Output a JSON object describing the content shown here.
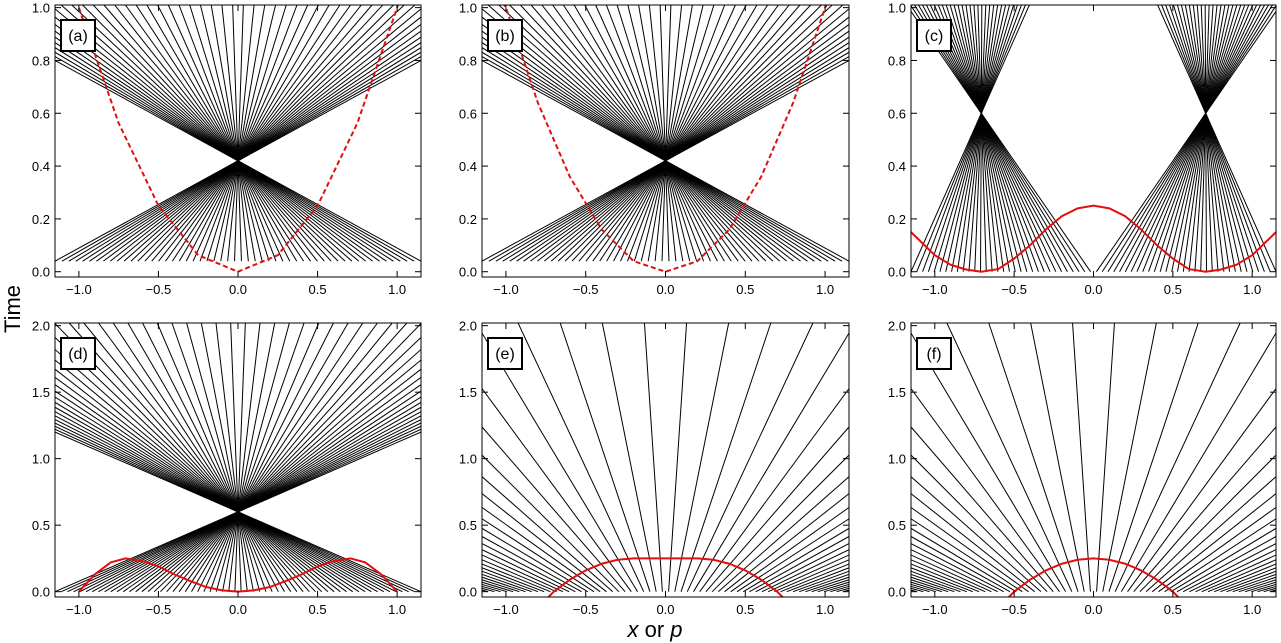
{
  "figure": {
    "ylabel": "Time",
    "xlabel_parts": [
      {
        "text": "x",
        "italic": true
      },
      {
        "text": " or ",
        "italic": false
      },
      {
        "text": "p",
        "italic": true
      }
    ]
  },
  "chart_data": [
    {
      "panel": "(a)",
      "type": "line",
      "xlim": [
        -1.15,
        1.15
      ],
      "ylim": [
        -0.02,
        1.01
      ],
      "xticks": [
        -1.0,
        -0.5,
        0.0,
        0.5,
        1.0
      ],
      "xtick_labels": [
        "−1.0",
        "−0.5",
        "0.0",
        "0.5",
        "1.0"
      ],
      "yticks": [
        0.0,
        0.2,
        0.4,
        0.6,
        0.8,
        1.0
      ],
      "ytick_labels": [
        "0.0",
        "0.2",
        "0.4",
        "0.6",
        "0.8",
        "1.0"
      ],
      "rays": {
        "n": 54,
        "x0_min": -1.15,
        "x0_max": 1.15,
        "focus_x": 0,
        "focus_t": 0.42,
        "t_start": 0.04
      },
      "red_curve": {
        "style": "dashed",
        "points": [
          [
            -1.15,
            1.32
          ],
          [
            -1.0,
            1.0
          ],
          [
            -0.75,
            0.5625
          ],
          [
            -0.5,
            0.25
          ],
          [
            -0.25,
            0.0625
          ],
          [
            0,
            0
          ],
          [
            0.25,
            0.0625
          ],
          [
            0.5,
            0.25
          ],
          [
            0.75,
            0.5625
          ],
          [
            1.0,
            1.0
          ],
          [
            1.15,
            1.32
          ]
        ]
      }
    },
    {
      "panel": "(b)",
      "type": "line",
      "xlim": [
        -1.15,
        1.15
      ],
      "ylim": [
        -0.02,
        1.01
      ],
      "xticks": [
        -1.0,
        -0.5,
        0.0,
        0.5,
        1.0
      ],
      "xtick_labels": [
        "−1.0",
        "−0.5",
        "0.0",
        "0.5",
        "1.0"
      ],
      "yticks": [
        0.0,
        0.2,
        0.4,
        0.6,
        0.8,
        1.0
      ],
      "ytick_labels": [
        "0.0",
        "0.2",
        "0.4",
        "0.6",
        "0.8",
        "1.0"
      ],
      "rays": {
        "n": 54,
        "x0_min": -1.15,
        "x0_max": 1.15,
        "focus_x": 0,
        "focus_t": 0.42,
        "t_start": 0.04,
        "crossed": true
      },
      "red_curve": {
        "style": "dashed",
        "points": [
          [
            -1.15,
            1.15
          ],
          [
            -1.0,
            1.0
          ],
          [
            -0.8,
            0.64
          ],
          [
            -0.6,
            0.36
          ],
          [
            -0.4,
            0.16
          ],
          [
            -0.2,
            0.04
          ],
          [
            0,
            0
          ],
          [
            0.2,
            0.04
          ],
          [
            0.4,
            0.16
          ],
          [
            0.6,
            0.36
          ],
          [
            0.8,
            0.64
          ],
          [
            1.0,
            1.0
          ],
          [
            1.15,
            1.15
          ]
        ]
      }
    },
    {
      "panel": "(c)",
      "type": "line",
      "xlim": [
        -1.15,
        1.15
      ],
      "ylim": [
        -0.02,
        1.01
      ],
      "xticks": [
        -1.0,
        -0.5,
        0.0,
        0.5,
        1.0
      ],
      "xtick_labels": [
        "−1.0",
        "−0.5",
        "0.0",
        "0.5",
        "1.0"
      ],
      "yticks": [
        0.0,
        0.2,
        0.4,
        0.6,
        0.8,
        1.0
      ],
      "ytick_labels": [
        "0.0",
        "0.2",
        "0.4",
        "0.6",
        "0.8",
        "1.0"
      ],
      "rays": {
        "n": 64,
        "x0_min": -1.15,
        "x0_max": 1.15,
        "foci_x": [
          -0.707,
          0.707
        ],
        "focus_t": 0.6,
        "t_start": 0.0
      },
      "red_curve": {
        "style": "solid",
        "points": [
          [
            -1.15,
            0.15
          ],
          [
            -1.0,
            0.0625
          ],
          [
            -0.9,
            0.026
          ],
          [
            -0.8,
            0.008
          ],
          [
            -0.707,
            0.0
          ],
          [
            -0.6,
            0.01
          ],
          [
            -0.5,
            0.05
          ],
          [
            -0.4,
            0.1
          ],
          [
            -0.3,
            0.16
          ],
          [
            -0.2,
            0.21
          ],
          [
            -0.1,
            0.24
          ],
          [
            0.0,
            0.25
          ],
          [
            0.1,
            0.24
          ],
          [
            0.2,
            0.21
          ],
          [
            0.3,
            0.16
          ],
          [
            0.4,
            0.1
          ],
          [
            0.5,
            0.05
          ],
          [
            0.6,
            0.01
          ],
          [
            0.707,
            0.0
          ],
          [
            0.8,
            0.008
          ],
          [
            0.9,
            0.026
          ],
          [
            1.0,
            0.0625
          ],
          [
            1.15,
            0.15
          ]
        ]
      }
    },
    {
      "panel": "(d)",
      "type": "line",
      "xlim": [
        -1.15,
        1.15
      ],
      "ylim": [
        -0.04,
        2.02
      ],
      "xticks": [
        -1.0,
        -0.5,
        0.0,
        0.5,
        1.0
      ],
      "xtick_labels": [
        "−1.0",
        "−0.5",
        "0.0",
        "0.5",
        "1.0"
      ],
      "yticks": [
        0.0,
        0.5,
        1.0,
        1.5,
        2.0
      ],
      "ytick_labels": [
        "0.0",
        "0.5",
        "1.0",
        "1.5",
        "2.0"
      ],
      "rays": {
        "n": 60,
        "x0_min": -1.15,
        "x0_max": 1.15,
        "focus_x": 0,
        "focus_t": 0.6,
        "t_start": 0.0
      },
      "red_curve": {
        "style": "solid",
        "points": [
          [
            -1.0,
            0.0
          ],
          [
            -0.9,
            0.13
          ],
          [
            -0.8,
            0.22
          ],
          [
            -0.707,
            0.25
          ],
          [
            -0.6,
            0.23
          ],
          [
            -0.5,
            0.19
          ],
          [
            -0.4,
            0.13
          ],
          [
            -0.3,
            0.08
          ],
          [
            -0.2,
            0.035
          ],
          [
            -0.1,
            0.01
          ],
          [
            0.0,
            0.0
          ],
          [
            0.1,
            0.01
          ],
          [
            0.2,
            0.035
          ],
          [
            0.3,
            0.08
          ],
          [
            0.4,
            0.13
          ],
          [
            0.5,
            0.19
          ],
          [
            0.6,
            0.23
          ],
          [
            0.707,
            0.25
          ],
          [
            0.8,
            0.22
          ],
          [
            0.9,
            0.13
          ],
          [
            1.0,
            0.0
          ]
        ]
      }
    },
    {
      "panel": "(e)",
      "type": "line",
      "xlim": [
        -1.15,
        1.15
      ],
      "ylim": [
        -0.04,
        2.02
      ],
      "xticks": [
        -1.0,
        -0.5,
        0.0,
        0.5,
        1.0
      ],
      "xtick_labels": [
        "−1.0",
        "−0.5",
        "0.0",
        "0.5",
        "1.0"
      ],
      "yticks": [
        0.0,
        0.5,
        1.0,
        1.5,
        2.0
      ],
      "ytick_labels": [
        "0.0",
        "0.5",
        "1.0",
        "1.5",
        "2.0"
      ],
      "rays": {
        "n": 60,
        "x0_min": -1.15,
        "x0_max": 1.15,
        "spread": 0.35
      },
      "red_curve": {
        "style": "solid",
        "points": [
          [
            -0.75,
            -0.06
          ],
          [
            -0.7,
            0.0
          ],
          [
            -0.6,
            0.09
          ],
          [
            -0.5,
            0.16
          ],
          [
            -0.4,
            0.21
          ],
          [
            -0.3,
            0.24
          ],
          [
            -0.2,
            0.25
          ],
          [
            0.0,
            0.25
          ],
          [
            0.2,
            0.25
          ],
          [
            0.3,
            0.24
          ],
          [
            0.4,
            0.21
          ],
          [
            0.5,
            0.16
          ],
          [
            0.6,
            0.09
          ],
          [
            0.7,
            0.0
          ],
          [
            0.75,
            -0.06
          ]
        ]
      }
    },
    {
      "panel": "(f)",
      "type": "line",
      "xlim": [
        -1.15,
        1.15
      ],
      "ylim": [
        -0.04,
        2.02
      ],
      "xticks": [
        -1.0,
        -0.5,
        0.0,
        0.5,
        1.0
      ],
      "xtick_labels": [
        "−1.0",
        "−0.5",
        "0.0",
        "0.5",
        "1.0"
      ],
      "yticks": [
        0.0,
        0.5,
        1.0,
        1.5,
        2.0
      ],
      "ytick_labels": [
        "0.0",
        "0.5",
        "1.0",
        "1.5",
        "2.0"
      ],
      "rays": {
        "n": 60,
        "x0_min": -1.15,
        "x0_max": 1.15,
        "spread": 0.35
      },
      "red_curve": {
        "style": "solid",
        "points": [
          [
            -0.55,
            -0.06
          ],
          [
            -0.5,
            0.0
          ],
          [
            -0.4,
            0.09
          ],
          [
            -0.3,
            0.16
          ],
          [
            -0.2,
            0.21
          ],
          [
            -0.1,
            0.24
          ],
          [
            0.0,
            0.25
          ],
          [
            0.1,
            0.24
          ],
          [
            0.2,
            0.21
          ],
          [
            0.3,
            0.16
          ],
          [
            0.4,
            0.09
          ],
          [
            0.5,
            0.0
          ],
          [
            0.55,
            -0.06
          ]
        ]
      }
    }
  ]
}
